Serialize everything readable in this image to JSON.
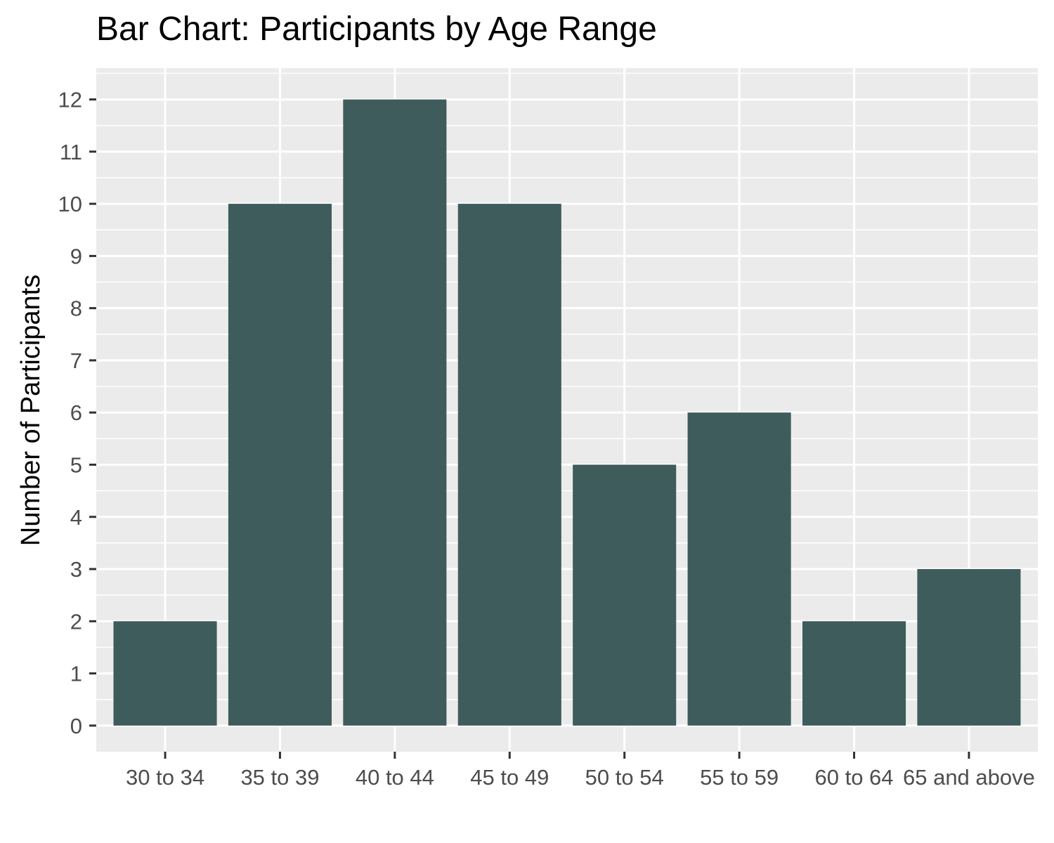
{
  "chart_data": {
    "type": "bar",
    "title": "Bar Chart: Participants by Age Range",
    "xlabel": "",
    "ylabel": "Number of Participants",
    "categories": [
      "30 to 34",
      "35 to 39",
      "40 to 44",
      "45 to 49",
      "50 to 54",
      "55 to 59",
      "60 to 64",
      "65 and above"
    ],
    "values": [
      2,
      10,
      12,
      10,
      5,
      6,
      2,
      3
    ],
    "ylim": [
      -0.5,
      12.6
    ],
    "yticks": [
      0,
      1,
      2,
      3,
      4,
      5,
      6,
      7,
      8,
      9,
      10,
      11,
      12
    ],
    "grid": true,
    "legend": "none",
    "colors": {
      "bar": "#3e5c5b",
      "panel": "#ebebeb",
      "grid": "#ffffff",
      "tick_text": "#4d4d4d",
      "tick_mark": "#333333"
    }
  }
}
